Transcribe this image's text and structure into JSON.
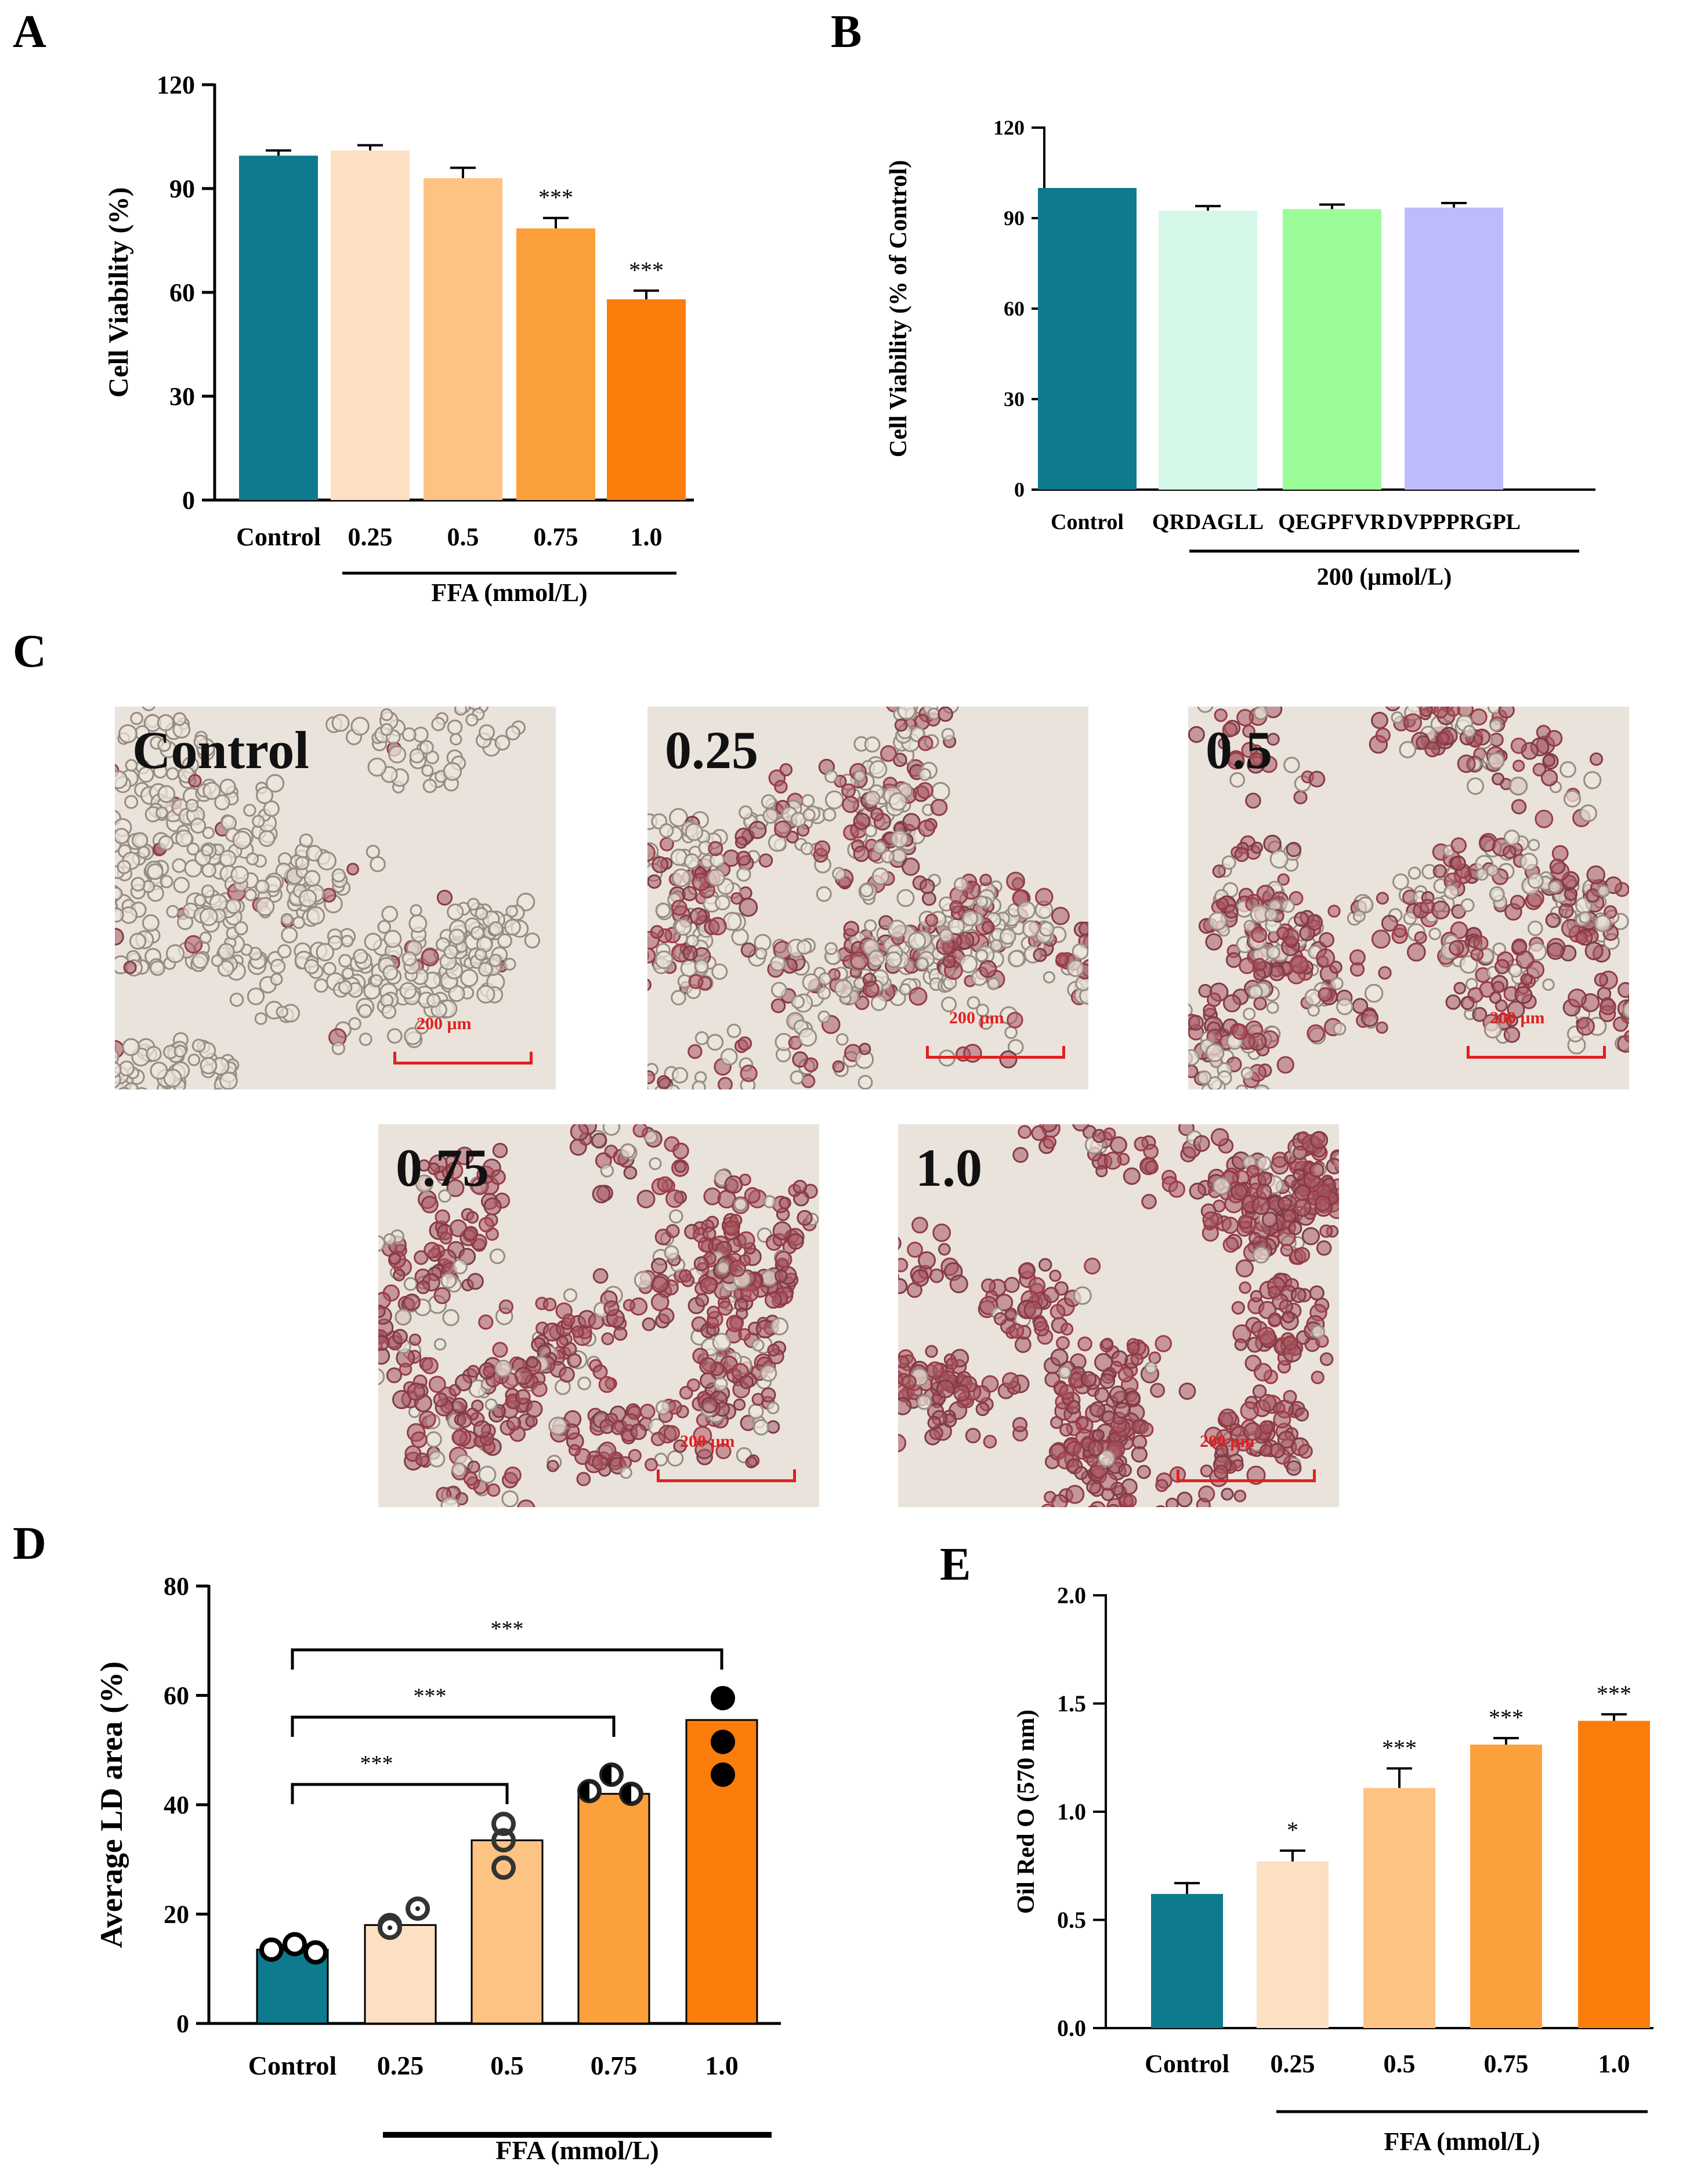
{
  "panels": {
    "A": "A",
    "B": "B",
    "C": "C",
    "D": "D",
    "E": "E"
  },
  "colors": {
    "control": "#0e7a8e",
    "ffa_025": "#fde0c2",
    "ffa_05": "#fcc383",
    "ffa_075": "#fca03c",
    "ffa_10": "#fb7d0c",
    "qrdagll": "#d4f7e7",
    "qegpfvr": "#9cfc98",
    "dvppprgpl": "#bcbcfc"
  },
  "micrographs": [
    {
      "label": "Control",
      "scale": "200 μm",
      "stain": 0.05
    },
    {
      "label": "0.25",
      "scale": "200 μm",
      "stain": 0.45
    },
    {
      "label": "0.5",
      "scale": "200 μm",
      "stain": 0.6
    },
    {
      "label": "0.75",
      "scale": "200 μm",
      "stain": 0.8
    },
    {
      "label": "1.0",
      "scale": "200 μm",
      "stain": 0.95
    }
  ],
  "chart_data": [
    {
      "id": "A",
      "type": "bar",
      "title": "",
      "ylabel": "Cell Viability (%)",
      "xlabel": "FFA (mmol/L)",
      "group_label": "FFA (mmol/L)",
      "categories": [
        "Control",
        "0.25",
        "0.5",
        "0.75",
        "1.0"
      ],
      "values": [
        99.5,
        101,
        93,
        78.5,
        58
      ],
      "errors": [
        1.5,
        1.5,
        3,
        3,
        2.5
      ],
      "significance": [
        "",
        "",
        "",
        "***",
        "***"
      ],
      "ylim": [
        0,
        120
      ],
      "yticks": [
        "0",
        "30",
        "60",
        "90",
        "120"
      ],
      "colors": [
        "#0e7a8e",
        "#fde0c2",
        "#fcc383",
        "#fca03c",
        "#fb7d0c"
      ]
    },
    {
      "id": "B",
      "type": "bar",
      "title": "",
      "ylabel": "Cell Viability (% of Control)",
      "xlabel": "200 (μmol/L)",
      "group_label": "200 (μmol/L)",
      "categories": [
        "Control",
        "QRDAGLL",
        "QEGPFVR",
        "DVPPPRGPL"
      ],
      "values": [
        100,
        92.5,
        93,
        93.5
      ],
      "errors": [
        0,
        1.5,
        1.5,
        1.5
      ],
      "significance": [
        "",
        "",
        "",
        ""
      ],
      "ylim": [
        0,
        120
      ],
      "yticks": [
        "0",
        "30",
        "60",
        "90",
        "120"
      ],
      "colors": [
        "#0e7a8e",
        "#d4f7e7",
        "#9cfc98",
        "#bcbcfc"
      ]
    },
    {
      "id": "D",
      "type": "bar",
      "title": "",
      "ylabel": "Average LD area (%)",
      "xlabel": "FFA (mmol/L)",
      "group_label": "FFA (mmol/L)",
      "categories": [
        "Control",
        "0.25",
        "0.5",
        "0.75",
        "1.0"
      ],
      "values": [
        13.5,
        18,
        33.5,
        42,
        55.5
      ],
      "points": [
        [
          13.5,
          14.5,
          13
        ],
        [
          18,
          17.5,
          21
        ],
        [
          36.5,
          33.5,
          28.5
        ],
        [
          45.5,
          42.5,
          42
        ],
        [
          59.5,
          51.5,
          45.5
        ]
      ],
      "brackets": [
        {
          "from": "Control",
          "to": "1.0",
          "label": "***"
        },
        {
          "from": "Control",
          "to": "0.75",
          "label": "***"
        },
        {
          "from": "Control",
          "to": "0.5",
          "label": "***"
        }
      ],
      "ylim": [
        0,
        80
      ],
      "yticks": [
        "0",
        "20",
        "40",
        "60",
        "80"
      ],
      "colors": [
        "#0e7a8e",
        "#fde0c2",
        "#fcc383",
        "#fca03c",
        "#fb7d0c"
      ]
    },
    {
      "id": "E",
      "type": "bar",
      "title": "",
      "ylabel": "Oil Red O (570 nm)",
      "xlabel": "FFA (mmol/L)",
      "group_label": "FFA (mmol/L)",
      "categories": [
        "Control",
        "0.25",
        "0.5",
        "0.75",
        "1.0"
      ],
      "values": [
        0.62,
        0.77,
        1.11,
        1.31,
        1.42
      ],
      "errors": [
        0.05,
        0.05,
        0.09,
        0.03,
        0.03
      ],
      "significance": [
        "",
        "*",
        "***",
        "***",
        "***"
      ],
      "ylim": [
        0,
        2.0
      ],
      "yticks": [
        "0.0",
        "0.5",
        "1.0",
        "1.5",
        "2.0"
      ],
      "colors": [
        "#0e7a8e",
        "#fde0c2",
        "#fcc383",
        "#fca03c",
        "#fb7d0c"
      ]
    }
  ]
}
